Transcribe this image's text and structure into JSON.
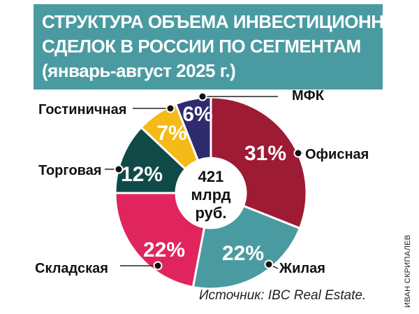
{
  "title": [
    "СТРУКТУРА ОБЪЕМА ИНВЕСТИЦИОННЫХ",
    "СДЕЛОК В РОССИИ ПО СЕГМЕНТАМ",
    "(январь-август 2025 г.)"
  ],
  "chart_data": {
    "type": "pie",
    "donut": true,
    "center_text": [
      "421",
      "млрд",
      "руб."
    ],
    "slices": [
      {
        "label": "Офисная",
        "value": 31,
        "value_label": "31%",
        "color": "#9e1b34"
      },
      {
        "label": "Жилая",
        "value": 22,
        "value_label": "22%",
        "color": "#4a9ba1"
      },
      {
        "label": "Складская",
        "value": 22,
        "value_label": "22%",
        "color": "#e0245e"
      },
      {
        "label": "Торговая",
        "value": 12,
        "value_label": "12%",
        "color": "#0f4a48"
      },
      {
        "label": "Гостиничная",
        "value": 7,
        "value_label": "7%",
        "color": "#f5b918"
      },
      {
        "label": "МФК",
        "value": 6,
        "value_label": "6%",
        "color": "#2f2b6e"
      }
    ]
  },
  "source": "Источник: IBC Real Estate.",
  "credit": "ИВАН СКРИПАЛЕВ"
}
